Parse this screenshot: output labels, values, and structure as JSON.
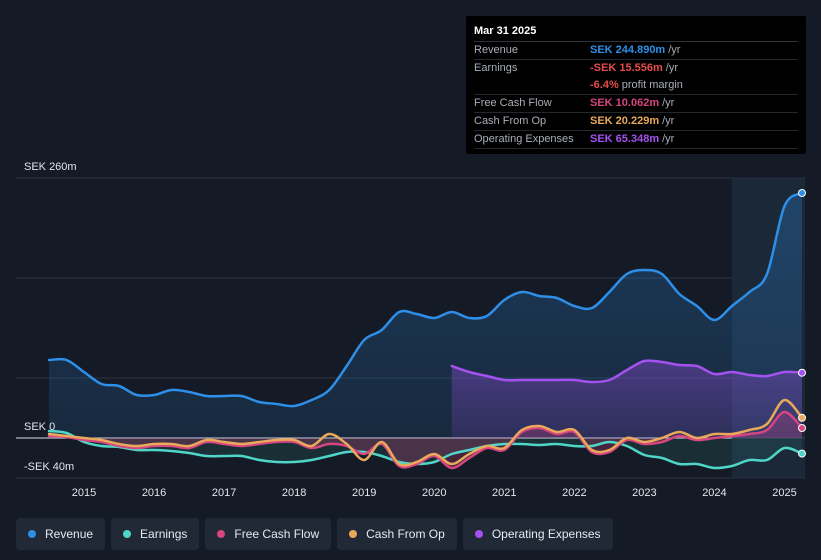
{
  "tooltip": {
    "date": "Mar 31 2025",
    "rows": [
      {
        "label": "Revenue",
        "value": "SEK 244.890m",
        "unit": "/yr",
        "color": "#2d8fe8"
      },
      {
        "label": "Earnings",
        "value": "-SEK 15.556m",
        "unit": "/yr",
        "color": "#e84b4b"
      },
      {
        "label": "",
        "value": "-6.4%",
        "unit": "profit margin",
        "color": "#e84b4b"
      },
      {
        "label": "Free Cash Flow",
        "value": "SEK 10.062m",
        "unit": "/yr",
        "color": "#d6457f"
      },
      {
        "label": "Cash From Op",
        "value": "SEK 20.229m",
        "unit": "/yr",
        "color": "#e8a95a"
      },
      {
        "label": "Operating Expenses",
        "value": "SEK 65.348m",
        "unit": "/yr",
        "color": "#a451f0"
      }
    ]
  },
  "legend": [
    {
      "label": "Revenue",
      "color": "#2d8fe8"
    },
    {
      "label": "Earnings",
      "color": "#4fd6c8"
    },
    {
      "label": "Free Cash Flow",
      "color": "#d6457f"
    },
    {
      "label": "Cash From Op",
      "color": "#e8a95a"
    },
    {
      "label": "Operating Expenses",
      "color": "#a451f0"
    }
  ],
  "chart_data": {
    "type": "area",
    "title": "",
    "y_labels": {
      "top": "SEK 260m",
      "zero": "SEK 0",
      "bottom": "-SEK 40m"
    },
    "ylim": [
      -40,
      260
    ],
    "xlim": [
      2014.5,
      2025.25
    ],
    "x_ticks": [
      "2015",
      "2016",
      "2017",
      "2018",
      "2019",
      "2020",
      "2021",
      "2022",
      "2023",
      "2024",
      "2025"
    ],
    "forecast_start": 2024.25,
    "series": [
      {
        "name": "Revenue",
        "color": "#2d8fe8",
        "fill": true,
        "points": [
          [
            2014.5,
            78
          ],
          [
            2014.75,
            78
          ],
          [
            2015.0,
            66
          ],
          [
            2015.25,
            54
          ],
          [
            2015.5,
            52
          ],
          [
            2015.75,
            43
          ],
          [
            2016.0,
            43
          ],
          [
            2016.25,
            48
          ],
          [
            2016.5,
            46
          ],
          [
            2016.75,
            42
          ],
          [
            2017.0,
            42
          ],
          [
            2017.25,
            42
          ],
          [
            2017.5,
            36
          ],
          [
            2017.75,
            34
          ],
          [
            2018.0,
            32
          ],
          [
            2018.25,
            38
          ],
          [
            2018.5,
            48
          ],
          [
            2018.75,
            72
          ],
          [
            2019.0,
            98
          ],
          [
            2019.25,
            108
          ],
          [
            2019.5,
            126
          ],
          [
            2019.75,
            124
          ],
          [
            2020.0,
            120
          ],
          [
            2020.25,
            126
          ],
          [
            2020.5,
            120
          ],
          [
            2020.75,
            122
          ],
          [
            2021.0,
            138
          ],
          [
            2021.25,
            146
          ],
          [
            2021.5,
            142
          ],
          [
            2021.75,
            140
          ],
          [
            2022.0,
            132
          ],
          [
            2022.25,
            130
          ],
          [
            2022.5,
            146
          ],
          [
            2022.75,
            164
          ],
          [
            2023.0,
            168
          ],
          [
            2023.25,
            164
          ],
          [
            2023.5,
            144
          ],
          [
            2023.75,
            132
          ],
          [
            2024.0,
            118
          ],
          [
            2024.25,
            132
          ],
          [
            2024.5,
            146
          ],
          [
            2024.75,
            164
          ],
          [
            2025.0,
            232
          ],
          [
            2025.25,
            245
          ]
        ]
      },
      {
        "name": "Operating Expenses",
        "color": "#a451f0",
        "fill": true,
        "points": [
          [
            2020.25,
            72
          ],
          [
            2020.5,
            66
          ],
          [
            2020.75,
            62
          ],
          [
            2021.0,
            58
          ],
          [
            2021.25,
            58
          ],
          [
            2021.5,
            58
          ],
          [
            2021.75,
            58
          ],
          [
            2022.0,
            58
          ],
          [
            2022.25,
            56
          ],
          [
            2022.5,
            58
          ],
          [
            2022.75,
            68
          ],
          [
            2023.0,
            77
          ],
          [
            2023.25,
            76
          ],
          [
            2023.5,
            73
          ],
          [
            2023.75,
            72
          ],
          [
            2024.0,
            64
          ],
          [
            2024.25,
            66
          ],
          [
            2024.5,
            63
          ],
          [
            2024.75,
            62
          ],
          [
            2025.0,
            66
          ],
          [
            2025.25,
            65.3
          ]
        ]
      },
      {
        "name": "Earnings",
        "color": "#4fd6c8",
        "fill": true,
        "points": [
          [
            2014.5,
            7
          ],
          [
            2014.75,
            5
          ],
          [
            2015.0,
            -4
          ],
          [
            2015.25,
            -8
          ],
          [
            2015.5,
            -9
          ],
          [
            2015.75,
            -12
          ],
          [
            2016.0,
            -12
          ],
          [
            2016.25,
            -13
          ],
          [
            2016.5,
            -15
          ],
          [
            2016.75,
            -18
          ],
          [
            2017.0,
            -18
          ],
          [
            2017.25,
            -18
          ],
          [
            2017.5,
            -22
          ],
          [
            2017.75,
            -24
          ],
          [
            2018.0,
            -24
          ],
          [
            2018.25,
            -22
          ],
          [
            2018.5,
            -18
          ],
          [
            2018.75,
            -14
          ],
          [
            2019.0,
            -14
          ],
          [
            2019.25,
            -18
          ],
          [
            2019.5,
            -24
          ],
          [
            2019.75,
            -26
          ],
          [
            2020.0,
            -24
          ],
          [
            2020.25,
            -16
          ],
          [
            2020.5,
            -12
          ],
          [
            2020.75,
            -8
          ],
          [
            2021.0,
            -6
          ],
          [
            2021.25,
            -6
          ],
          [
            2021.5,
            -7
          ],
          [
            2021.75,
            -6
          ],
          [
            2022.0,
            -8
          ],
          [
            2022.25,
            -8
          ],
          [
            2022.5,
            -4
          ],
          [
            2022.75,
            -8
          ],
          [
            2023.0,
            -17
          ],
          [
            2023.25,
            -20
          ],
          [
            2023.5,
            -26
          ],
          [
            2023.75,
            -26
          ],
          [
            2024.0,
            -30
          ],
          [
            2024.25,
            -28
          ],
          [
            2024.5,
            -22
          ],
          [
            2024.75,
            -22
          ],
          [
            2025.0,
            -10
          ],
          [
            2025.25,
            -15.6
          ]
        ]
      },
      {
        "name": "Free Cash Flow",
        "color": "#d6457f",
        "fill": true,
        "points": [
          [
            2014.5,
            2
          ],
          [
            2014.75,
            1
          ],
          [
            2015.0,
            -2
          ],
          [
            2015.25,
            -4
          ],
          [
            2015.5,
            -8
          ],
          [
            2015.75,
            -10
          ],
          [
            2016.0,
            -8
          ],
          [
            2016.25,
            -8
          ],
          [
            2016.5,
            -10
          ],
          [
            2016.75,
            -4
          ],
          [
            2017.0,
            -6
          ],
          [
            2017.25,
            -8
          ],
          [
            2017.5,
            -6
          ],
          [
            2017.75,
            -4
          ],
          [
            2018.0,
            -4
          ],
          [
            2018.25,
            -10
          ],
          [
            2018.5,
            -6
          ],
          [
            2018.75,
            -8
          ],
          [
            2019.0,
            -16
          ],
          [
            2019.25,
            -6
          ],
          [
            2019.5,
            -28
          ],
          [
            2019.75,
            -26
          ],
          [
            2020.0,
            -18
          ],
          [
            2020.25,
            -30
          ],
          [
            2020.5,
            -20
          ],
          [
            2020.75,
            -10
          ],
          [
            2021.0,
            -12
          ],
          [
            2021.25,
            6
          ],
          [
            2021.5,
            10
          ],
          [
            2021.75,
            4
          ],
          [
            2022.0,
            6
          ],
          [
            2022.25,
            -14
          ],
          [
            2022.5,
            -14
          ],
          [
            2022.75,
            -2
          ],
          [
            2023.0,
            -6
          ],
          [
            2023.25,
            -4
          ],
          [
            2023.5,
            2
          ],
          [
            2023.75,
            -2
          ],
          [
            2024.0,
            0
          ],
          [
            2024.25,
            2
          ],
          [
            2024.5,
            4
          ],
          [
            2024.75,
            8
          ],
          [
            2025.0,
            26
          ],
          [
            2025.25,
            10
          ]
        ]
      },
      {
        "name": "Cash From Op",
        "color": "#e8a95a",
        "fill": false,
        "points": [
          [
            2014.5,
            4
          ],
          [
            2014.75,
            2
          ],
          [
            2015.0,
            0
          ],
          [
            2015.25,
            -2
          ],
          [
            2015.5,
            -6
          ],
          [
            2015.75,
            -8
          ],
          [
            2016.0,
            -6
          ],
          [
            2016.25,
            -6
          ],
          [
            2016.5,
            -8
          ],
          [
            2016.75,
            -2
          ],
          [
            2017.0,
            -4
          ],
          [
            2017.25,
            -6
          ],
          [
            2017.5,
            -4
          ],
          [
            2017.75,
            -2
          ],
          [
            2018.0,
            -2
          ],
          [
            2018.25,
            -8
          ],
          [
            2018.5,
            4
          ],
          [
            2018.75,
            -6
          ],
          [
            2019.0,
            -22
          ],
          [
            2019.25,
            -4
          ],
          [
            2019.5,
            -26
          ],
          [
            2019.75,
            -24
          ],
          [
            2020.0,
            -16
          ],
          [
            2020.25,
            -26
          ],
          [
            2020.5,
            -16
          ],
          [
            2020.75,
            -8
          ],
          [
            2021.0,
            -10
          ],
          [
            2021.25,
            8
          ],
          [
            2021.5,
            12
          ],
          [
            2021.75,
            6
          ],
          [
            2022.0,
            8
          ],
          [
            2022.25,
            -12
          ],
          [
            2022.5,
            -12
          ],
          [
            2022.75,
            0
          ],
          [
            2023.0,
            -4
          ],
          [
            2023.25,
            0
          ],
          [
            2023.5,
            6
          ],
          [
            2023.75,
            0
          ],
          [
            2024.0,
            4
          ],
          [
            2024.25,
            4
          ],
          [
            2024.5,
            8
          ],
          [
            2024.75,
            14
          ],
          [
            2025.0,
            38
          ],
          [
            2025.25,
            20.2
          ]
        ]
      }
    ]
  }
}
